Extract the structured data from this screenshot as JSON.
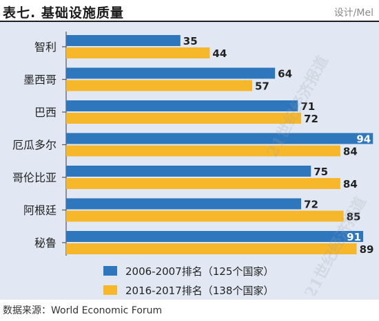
{
  "header": {
    "title": "表七.  基础设施质量",
    "credit": "设计/Mel"
  },
  "footer": {
    "source": "数据来源：World Economic Forum"
  },
  "watermark": {
    "text": "21世纪经济报道"
  },
  "colors": {
    "series_2006": "#2e77bd",
    "series_2016": "#f6b72a",
    "panel_bg": "#e1e8f3",
    "axis": "#555555"
  },
  "chart_data": {
    "type": "bar",
    "orientation": "horizontal",
    "title": "基础设施质量",
    "categories": [
      "智利",
      "墨西哥",
      "巴西",
      "厄瓜多尔",
      "哥伦比亚",
      "阿根廷",
      "秘鲁"
    ],
    "series": [
      {
        "name": "2006-2007排名（125个国家）",
        "values": [
          35,
          64,
          71,
          94,
          75,
          72,
          91
        ],
        "color": "#2e77bd"
      },
      {
        "name": "2016-2017排名（138个国家）",
        "values": [
          44,
          57,
          72,
          84,
          84,
          85,
          89
        ],
        "color": "#f6b72a"
      }
    ],
    "xlim": [
      0,
      95
    ],
    "grid": false,
    "legend_position": "bottom-center"
  }
}
